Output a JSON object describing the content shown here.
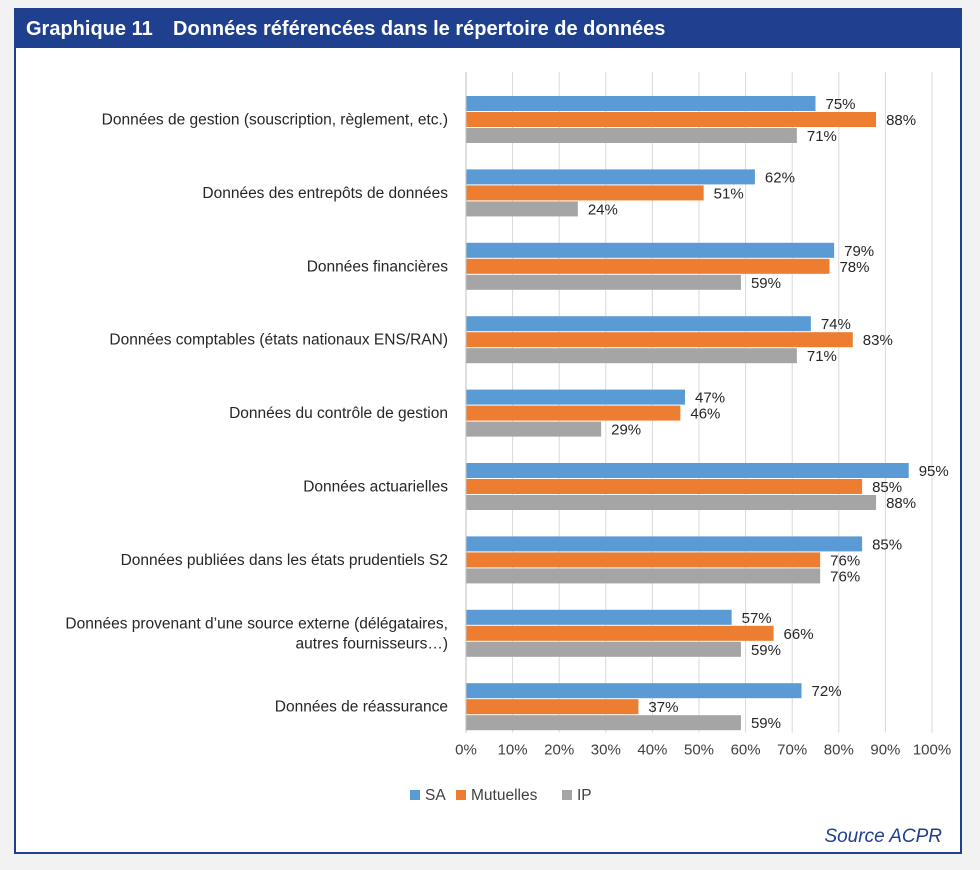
{
  "header": {
    "number": "Graphique 11",
    "title": "Données référencées dans le répertoire de données"
  },
  "source": "Source ACPR",
  "colors": {
    "SA": "#5b9bd5",
    "Mutuelles": "#ed7d31",
    "IP": "#a5a5a5",
    "frame": "#1f3f8f"
  },
  "chart_data": {
    "type": "bar",
    "orientation": "horizontal",
    "title": "Données référencées dans le répertoire de données",
    "categories": [
      [
        "Données de gestion (souscription, règlement, etc.)"
      ],
      [
        "Données des entrepôts de données"
      ],
      [
        "Données financières"
      ],
      [
        "Données comptables (états nationaux ENS/RAN)"
      ],
      [
        "Données du contrôle de gestion"
      ],
      [
        "Données actuarielles"
      ],
      [
        "Données publiées dans les états prudentiels S2"
      ],
      [
        "Données provenant d’une source externe (délégataires,",
        "autres fournisseurs…)"
      ],
      [
        "Données de réassurance"
      ]
    ],
    "series": [
      {
        "name": "SA",
        "values": [
          75,
          62,
          79,
          74,
          47,
          95,
          85,
          57,
          72
        ]
      },
      {
        "name": "Mutuelles",
        "values": [
          88,
          51,
          78,
          83,
          46,
          85,
          76,
          66,
          37
        ]
      },
      {
        "name": "IP",
        "values": [
          71,
          24,
          59,
          71,
          29,
          88,
          76,
          59,
          59
        ]
      }
    ],
    "xlim": [
      0,
      100
    ],
    "xticks": [
      "0%",
      "10%",
      "20%",
      "30%",
      "40%",
      "50%",
      "60%",
      "70%",
      "80%",
      "90%",
      "100%"
    ],
    "value_suffix": "%",
    "legend": "bottom-center",
    "grid": "vertical"
  }
}
